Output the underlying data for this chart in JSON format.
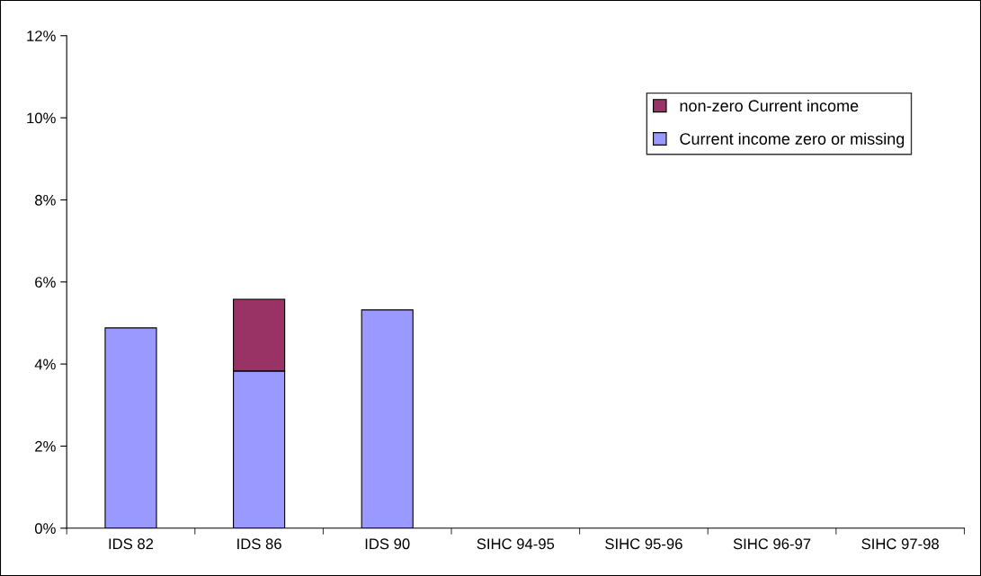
{
  "chart_data": {
    "type": "bar",
    "stacked": true,
    "categories": [
      "IDS 82",
      "IDS 86",
      "IDS 90",
      "SIHC 94-95",
      "SIHC 95-96",
      "SIHC 96-97",
      "SIHC 97-98"
    ],
    "series": [
      {
        "name": "Current income zero or missing",
        "color": "#9999ff",
        "values": [
          4.88,
          3.83,
          5.32,
          null,
          null,
          null,
          null
        ]
      },
      {
        "name": "non-zero Current income",
        "color": "#993366",
        "values": [
          null,
          1.75,
          null,
          null,
          null,
          null,
          null
        ]
      }
    ],
    "ylim": [
      0,
      12
    ],
    "yticks": [
      {
        "value": 0,
        "label": "0%"
      },
      {
        "value": 2,
        "label": "2%"
      },
      {
        "value": 4,
        "label": "4%"
      },
      {
        "value": 6,
        "label": "6%"
      },
      {
        "value": 8,
        "label": "8%"
      },
      {
        "value": 10,
        "label": "10%"
      },
      {
        "value": 12,
        "label": "12%"
      }
    ],
    "grid": false,
    "legend": "top right"
  }
}
